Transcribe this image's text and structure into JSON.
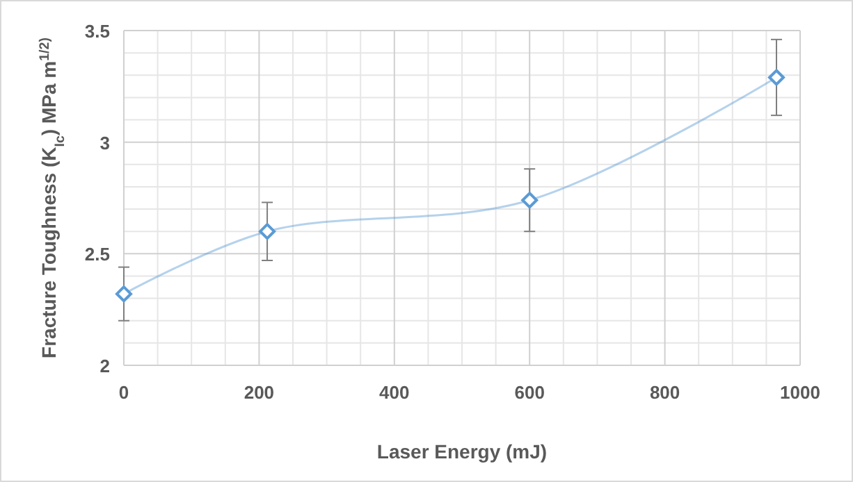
{
  "chart_data": {
    "type": "line",
    "xlabel": "Laser Energy (mJ)",
    "ylabel": "Fracture Toughness (K$_{Ic}$) MPa m$^{1/2)}$",
    "xlim": [
      0,
      1000
    ],
    "xticks": [
      0,
      200,
      400,
      600,
      800,
      1000
    ],
    "ylim": [
      2,
      3.5
    ],
    "yticks": [
      2,
      2.5,
      3,
      3.5
    ],
    "grid": true,
    "marker": "diamond",
    "line_style": "solid",
    "series": [
      {
        "color": "#5b9bd5",
        "x": [
          0,
          212,
          600,
          965
        ],
        "values": [
          2.32,
          2.6,
          2.74,
          3.29
        ],
        "errors": [
          0.12,
          0.13,
          0.14,
          0.17
        ]
      }
    ]
  }
}
